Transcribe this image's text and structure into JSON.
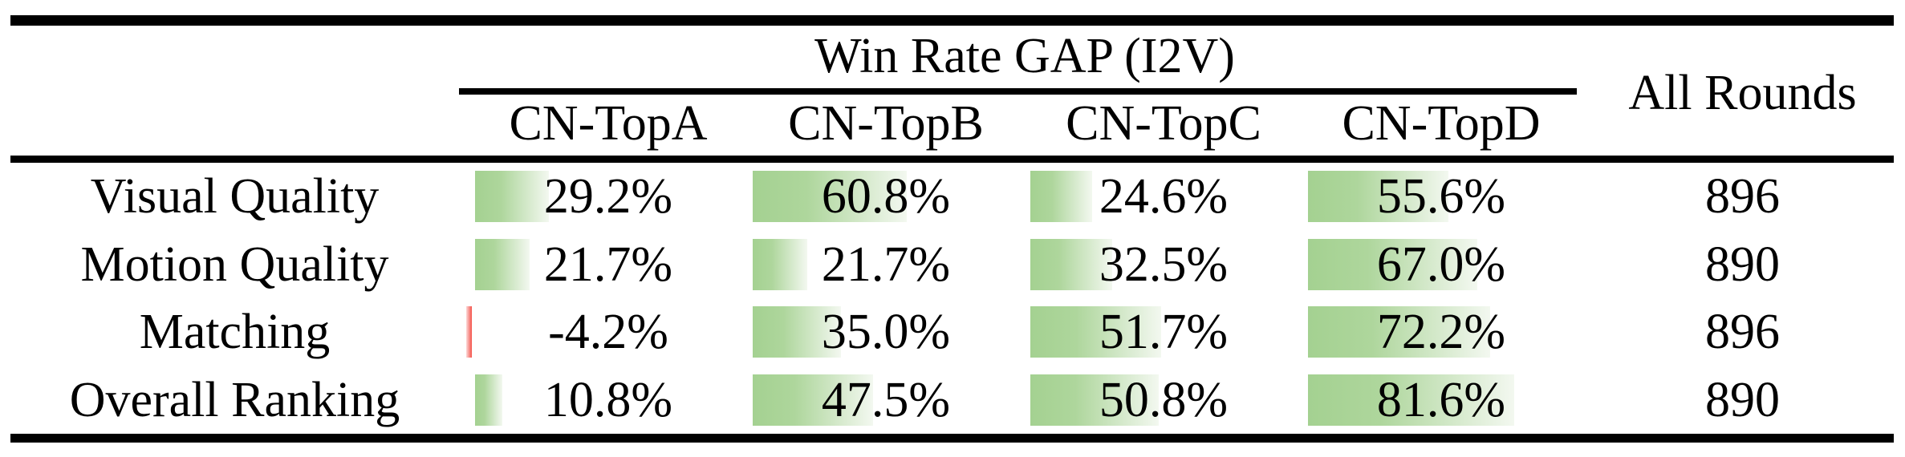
{
  "table": {
    "group_header": "Win Rate GAP (I2V)",
    "all_rounds_header": "All Rounds",
    "columns": [
      "CN-TopA",
      "CN-TopB",
      "CN-TopC",
      "CN-TopD"
    ],
    "rows": [
      {
        "label": "Visual Quality",
        "values": [
          29.2,
          60.8,
          24.6,
          55.6
        ],
        "display": [
          "29.2%",
          "60.8%",
          "24.6%",
          "55.6%"
        ],
        "all_rounds": "896"
      },
      {
        "label": "Motion Quality",
        "values": [
          21.7,
          21.7,
          32.5,
          67.0
        ],
        "display": [
          "21.7%",
          "21.7%",
          "32.5%",
          "67.0%"
        ],
        "all_rounds": "890"
      },
      {
        "label": "Matching",
        "values": [
          -4.2,
          35.0,
          51.7,
          72.2
        ],
        "display": [
          "-4.2%",
          "35.0%",
          "51.7%",
          "72.2%"
        ],
        "all_rounds": "896"
      },
      {
        "label": "Overall Ranking",
        "values": [
          10.8,
          47.5,
          50.8,
          81.6
        ],
        "display": [
          "10.8%",
          "47.5%",
          "50.8%",
          "81.6%"
        ],
        "all_rounds": "890"
      }
    ],
    "bar_colors": {
      "positive_start": "#a4d191",
      "positive_end": "#f3f8f0",
      "negative_start": "#fcd9d8",
      "negative_end": "#f4524a"
    }
  },
  "chart_data": {
    "type": "table",
    "title": "Win Rate GAP (I2V)",
    "row_header": [
      "Visual Quality",
      "Motion Quality",
      "Matching",
      "Overall Ranking"
    ],
    "columns": [
      "CN-TopA",
      "CN-TopB",
      "CN-TopC",
      "CN-TopD",
      "All Rounds"
    ],
    "series": [
      {
        "name": "Visual Quality",
        "win_rate_gap_pct": [
          29.2,
          60.8,
          24.6,
          55.6
        ],
        "all_rounds": 896
      },
      {
        "name": "Motion Quality",
        "win_rate_gap_pct": [
          21.7,
          21.7,
          32.5,
          67.0
        ],
        "all_rounds": 890
      },
      {
        "name": "Matching",
        "win_rate_gap_pct": [
          -4.2,
          35.0,
          51.7,
          72.2
        ],
        "all_rounds": 896
      },
      {
        "name": "Overall Ranking",
        "win_rate_gap_pct": [
          10.8,
          47.5,
          50.8,
          81.6
        ],
        "all_rounds": 890
      }
    ],
    "bar_style": "in-cell data bars, green gradient for positive, red for negative, width proportional to value, 100% = full cell"
  }
}
